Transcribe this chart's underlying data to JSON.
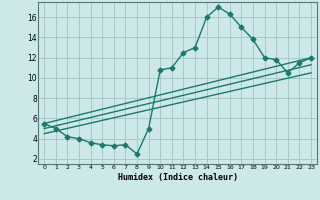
{
  "xlabel": "Humidex (Indice chaleur)",
  "bg_color": "#cde8e8",
  "grid_color": "#adc8c8",
  "line_color": "#1a7a6e",
  "xlim": [
    -0.5,
    23.5
  ],
  "ylim": [
    1.5,
    17.5
  ],
  "xticks": [
    0,
    1,
    2,
    3,
    4,
    5,
    6,
    7,
    8,
    9,
    10,
    11,
    12,
    13,
    14,
    15,
    16,
    17,
    18,
    19,
    20,
    21,
    22,
    23
  ],
  "yticks": [
    2,
    4,
    6,
    8,
    10,
    12,
    14,
    16
  ],
  "curve1_x": [
    0,
    1,
    2,
    3,
    4,
    5,
    6,
    7,
    8,
    9,
    10,
    11,
    12,
    13,
    14,
    15,
    16,
    17,
    18,
    19,
    20,
    21,
    22,
    23
  ],
  "curve1_y": [
    5.5,
    5.0,
    4.2,
    4.0,
    3.6,
    3.4,
    3.3,
    3.4,
    2.5,
    5.0,
    10.8,
    11.0,
    12.5,
    13.0,
    16.0,
    17.0,
    16.3,
    15.0,
    13.8,
    12.0,
    11.8,
    10.5,
    11.5,
    12.0
  ],
  "line2_x": [
    0,
    23
  ],
  "line2_y": [
    5.5,
    12.0
  ],
  "line3_x": [
    0,
    23
  ],
  "line3_y": [
    5.0,
    11.3
  ],
  "line4_x": [
    0,
    23
  ],
  "line4_y": [
    4.5,
    10.5
  ],
  "marker_size": 2.5,
  "line_width": 1.0
}
